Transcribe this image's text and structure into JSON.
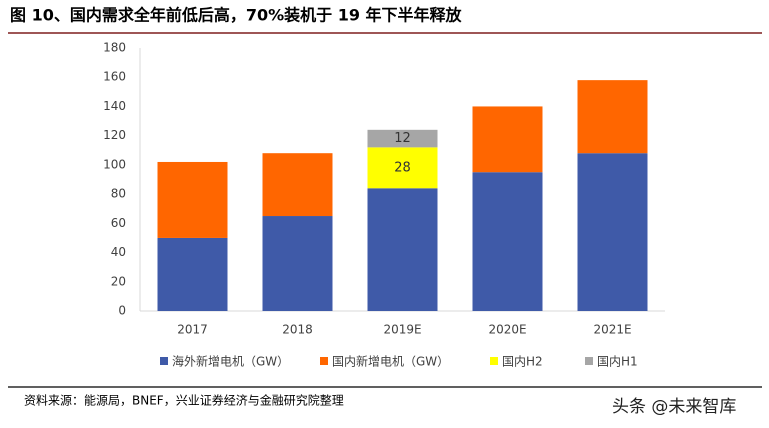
{
  "chart_data": {
    "type": "stacked_bar",
    "title": "图 10、国内需求全年前低后高，70%装机于 19 年下半年释放",
    "categories": [
      "2017",
      "2018",
      "2019E",
      "2020E",
      "2021E"
    ],
    "series": [
      {
        "name": "海外新增电机（GW）",
        "color": "#3F5AA8",
        "values": [
          50,
          65,
          84,
          95,
          108
        ]
      },
      {
        "name": "国内新增电机（GW）",
        "color": "#FF6600",
        "values": [
          52,
          43,
          null,
          45,
          50
        ]
      },
      {
        "name": "国内H2",
        "color": "#FFFF00",
        "values": [
          null,
          null,
          28,
          null,
          null
        ],
        "data_labels": true
      },
      {
        "name": "国内H1",
        "color": "#A6A6A6",
        "values": [
          null,
          null,
          12,
          null,
          null
        ],
        "data_labels": true
      }
    ],
    "ylim": [
      0,
      180
    ],
    "yticks": [
      0,
      20,
      40,
      60,
      80,
      100,
      120,
      140,
      160,
      180
    ],
    "grid": false,
    "legend": "bottom",
    "source": "资料来源：能源局，BNEF，兴业证券经济与金融研究院整理",
    "watermark": "头条 @未来智库"
  }
}
